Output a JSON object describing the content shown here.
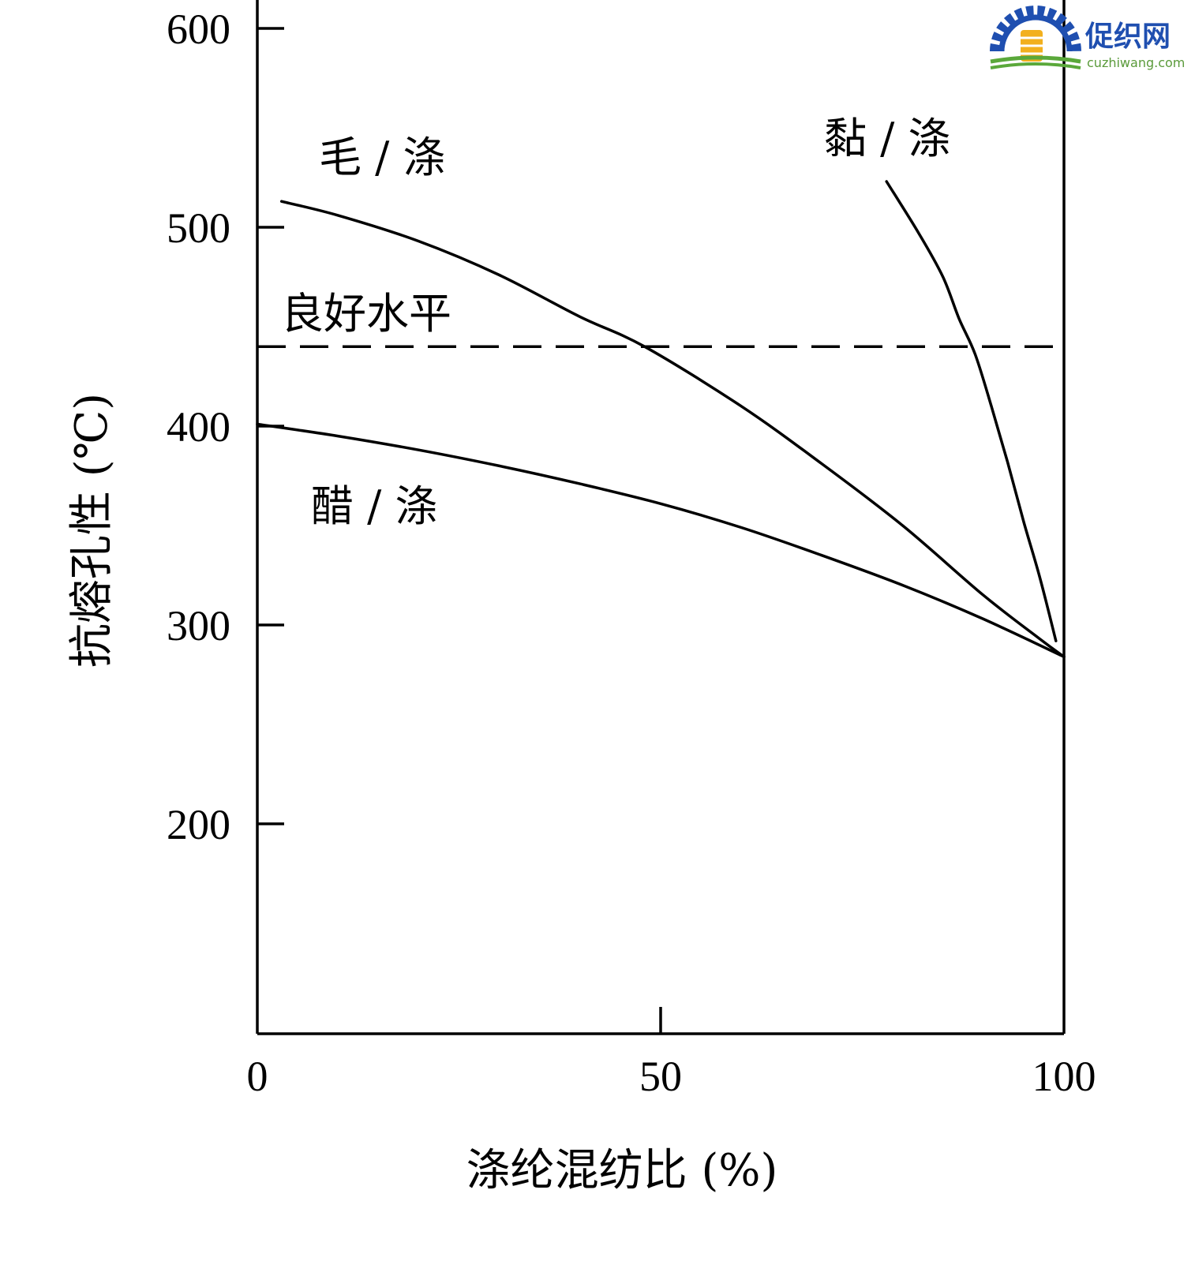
{
  "watermark": {
    "name": "促织网",
    "url": "cuzhiwang.com",
    "colors": {
      "blue": "#1f4fb0",
      "gold": "#f2b01e",
      "green": "#5aa83a"
    }
  },
  "chart_data": {
    "type": "line",
    "title": "",
    "xlabel": "涤纶混纺比 (%)",
    "ylabel": "抗熔孔性 (℃)",
    "xlim": [
      0,
      100
    ],
    "ylim": [
      100,
      600
    ],
    "xticks": [
      0,
      50,
      100
    ],
    "yticks": [
      200,
      300,
      400,
      500,
      600
    ],
    "x_tick_labels": [
      "0",
      "50",
      "100"
    ],
    "y_tick_labels": [
      "200",
      "300",
      "400",
      "500",
      "600"
    ],
    "grid": false,
    "reference_line": {
      "y": 440,
      "label": "良好水平",
      "style": "dashed"
    },
    "series": [
      {
        "name": "毛 / 涤",
        "x": [
          3,
          10,
          20,
          30,
          40,
          48,
          60,
          70,
          80,
          90,
          97,
          100
        ],
        "y": [
          513,
          506,
          493,
          476,
          455,
          440,
          410,
          381,
          350,
          315,
          293,
          284
        ]
      },
      {
        "name": "醋 / 涤",
        "x": [
          0,
          10,
          20,
          30,
          40,
          50,
          60,
          70,
          80,
          90,
          100
        ],
        "y": [
          401,
          395,
          388,
          380,
          371,
          361,
          349,
          335,
          320,
          303,
          284
        ]
      },
      {
        "name": "黏 / 涤",
        "x": [
          78,
          82,
          85,
          87,
          89,
          91,
          93,
          95,
          97,
          99
        ],
        "y": [
          523,
          497,
          475,
          454,
          436,
          410,
          382,
          352,
          324,
          292
        ]
      }
    ]
  }
}
